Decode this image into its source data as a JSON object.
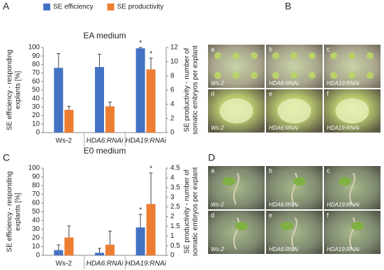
{
  "chart_data": [
    {
      "type": "bar",
      "title": "EA medium",
      "categories": [
        "Ws-2",
        "HDA6:RNAi",
        "HDA19:RNAi"
      ],
      "series": [
        {
          "name": "SE efficiency",
          "color": "#4472c4",
          "values": [
            76,
            77,
            99
          ],
          "errors": [
            17,
            15,
            1
          ],
          "significance": [
            null,
            null,
            "*"
          ]
        },
        {
          "name": "SE productivity",
          "color": "#ed7d31",
          "axis": "y2",
          "values": [
            3.2,
            3.7,
            8.9
          ],
          "errors": [
            0.5,
            0.6,
            1.6
          ],
          "significance": [
            null,
            null,
            "*"
          ]
        }
      ],
      "y_label": [
        "SE efficiency - responding",
        "explants [%]"
      ],
      "y2_label": [
        "SE productivity - number of",
        "somatic embryos per explant"
      ],
      "ylim": [
        0,
        100
      ],
      "yticks": [
        0,
        10,
        20,
        30,
        40,
        50,
        60,
        70,
        80,
        90,
        100
      ],
      "y2lim": [
        0,
        12
      ],
      "y2ticks": [
        0,
        2,
        4,
        6,
        8,
        10,
        12
      ],
      "legend": "top"
    },
    {
      "type": "bar",
      "title": "E0 medium",
      "categories": [
        "Ws-2",
        "HDA6:RNAi",
        "HDA19:RNAi"
      ],
      "series": [
        {
          "color": "#4472c4",
          "values": [
            6,
            3,
            32
          ],
          "errors": [
            6,
            5,
            15
          ],
          "significance": [
            null,
            null,
            "*"
          ]
        },
        {
          "color": "#ed7d31",
          "axis": "y2",
          "values": [
            0.92,
            0.55,
            2.65
          ],
          "errors": [
            0.6,
            0.7,
            1.6
          ],
          "significance": [
            null,
            null,
            "*"
          ]
        }
      ],
      "y_label": [
        "SE efficiency - responding",
        "explants [%]"
      ],
      "y2_label": [
        "SE productivity - number of",
        "somatic embryos per explant"
      ],
      "ylim": [
        0,
        100
      ],
      "yticks": [
        0,
        10,
        20,
        30,
        40,
        50,
        60,
        70,
        80,
        90,
        100
      ],
      "y2lim": [
        0,
        4.5
      ],
      "y2ticks": [
        0,
        0.5,
        1,
        1.5,
        2,
        2.5,
        3,
        3.5,
        4,
        4.5
      ]
    }
  ],
  "chart_letters": [
    "A",
    "C"
  ],
  "photo_panels": [
    {
      "letter": "B",
      "images": [
        {
          "letter": "a",
          "label": "Ws-2"
        },
        {
          "letter": "b",
          "label": "HDA6:RNAi"
        },
        {
          "letter": "c",
          "label": "HDA19:RNAi"
        },
        {
          "letter": "d",
          "label": "Ws-2"
        },
        {
          "letter": "e",
          "label": "HDA6:RNAi"
        },
        {
          "letter": "f",
          "label": "HDA19:RNAi"
        }
      ]
    },
    {
      "letter": "D",
      "images": [
        {
          "letter": "a",
          "label": "Ws-2"
        },
        {
          "letter": "b",
          "label": "HDA6:RNAi"
        },
        {
          "letter": "c",
          "label": "HDA19:RNAi"
        },
        {
          "letter": "d",
          "label": "Ws-2"
        },
        {
          "letter": "e",
          "label": "HDA6:RNAi"
        },
        {
          "letter": "f",
          "label": "HDA19:RNAi"
        }
      ]
    }
  ]
}
